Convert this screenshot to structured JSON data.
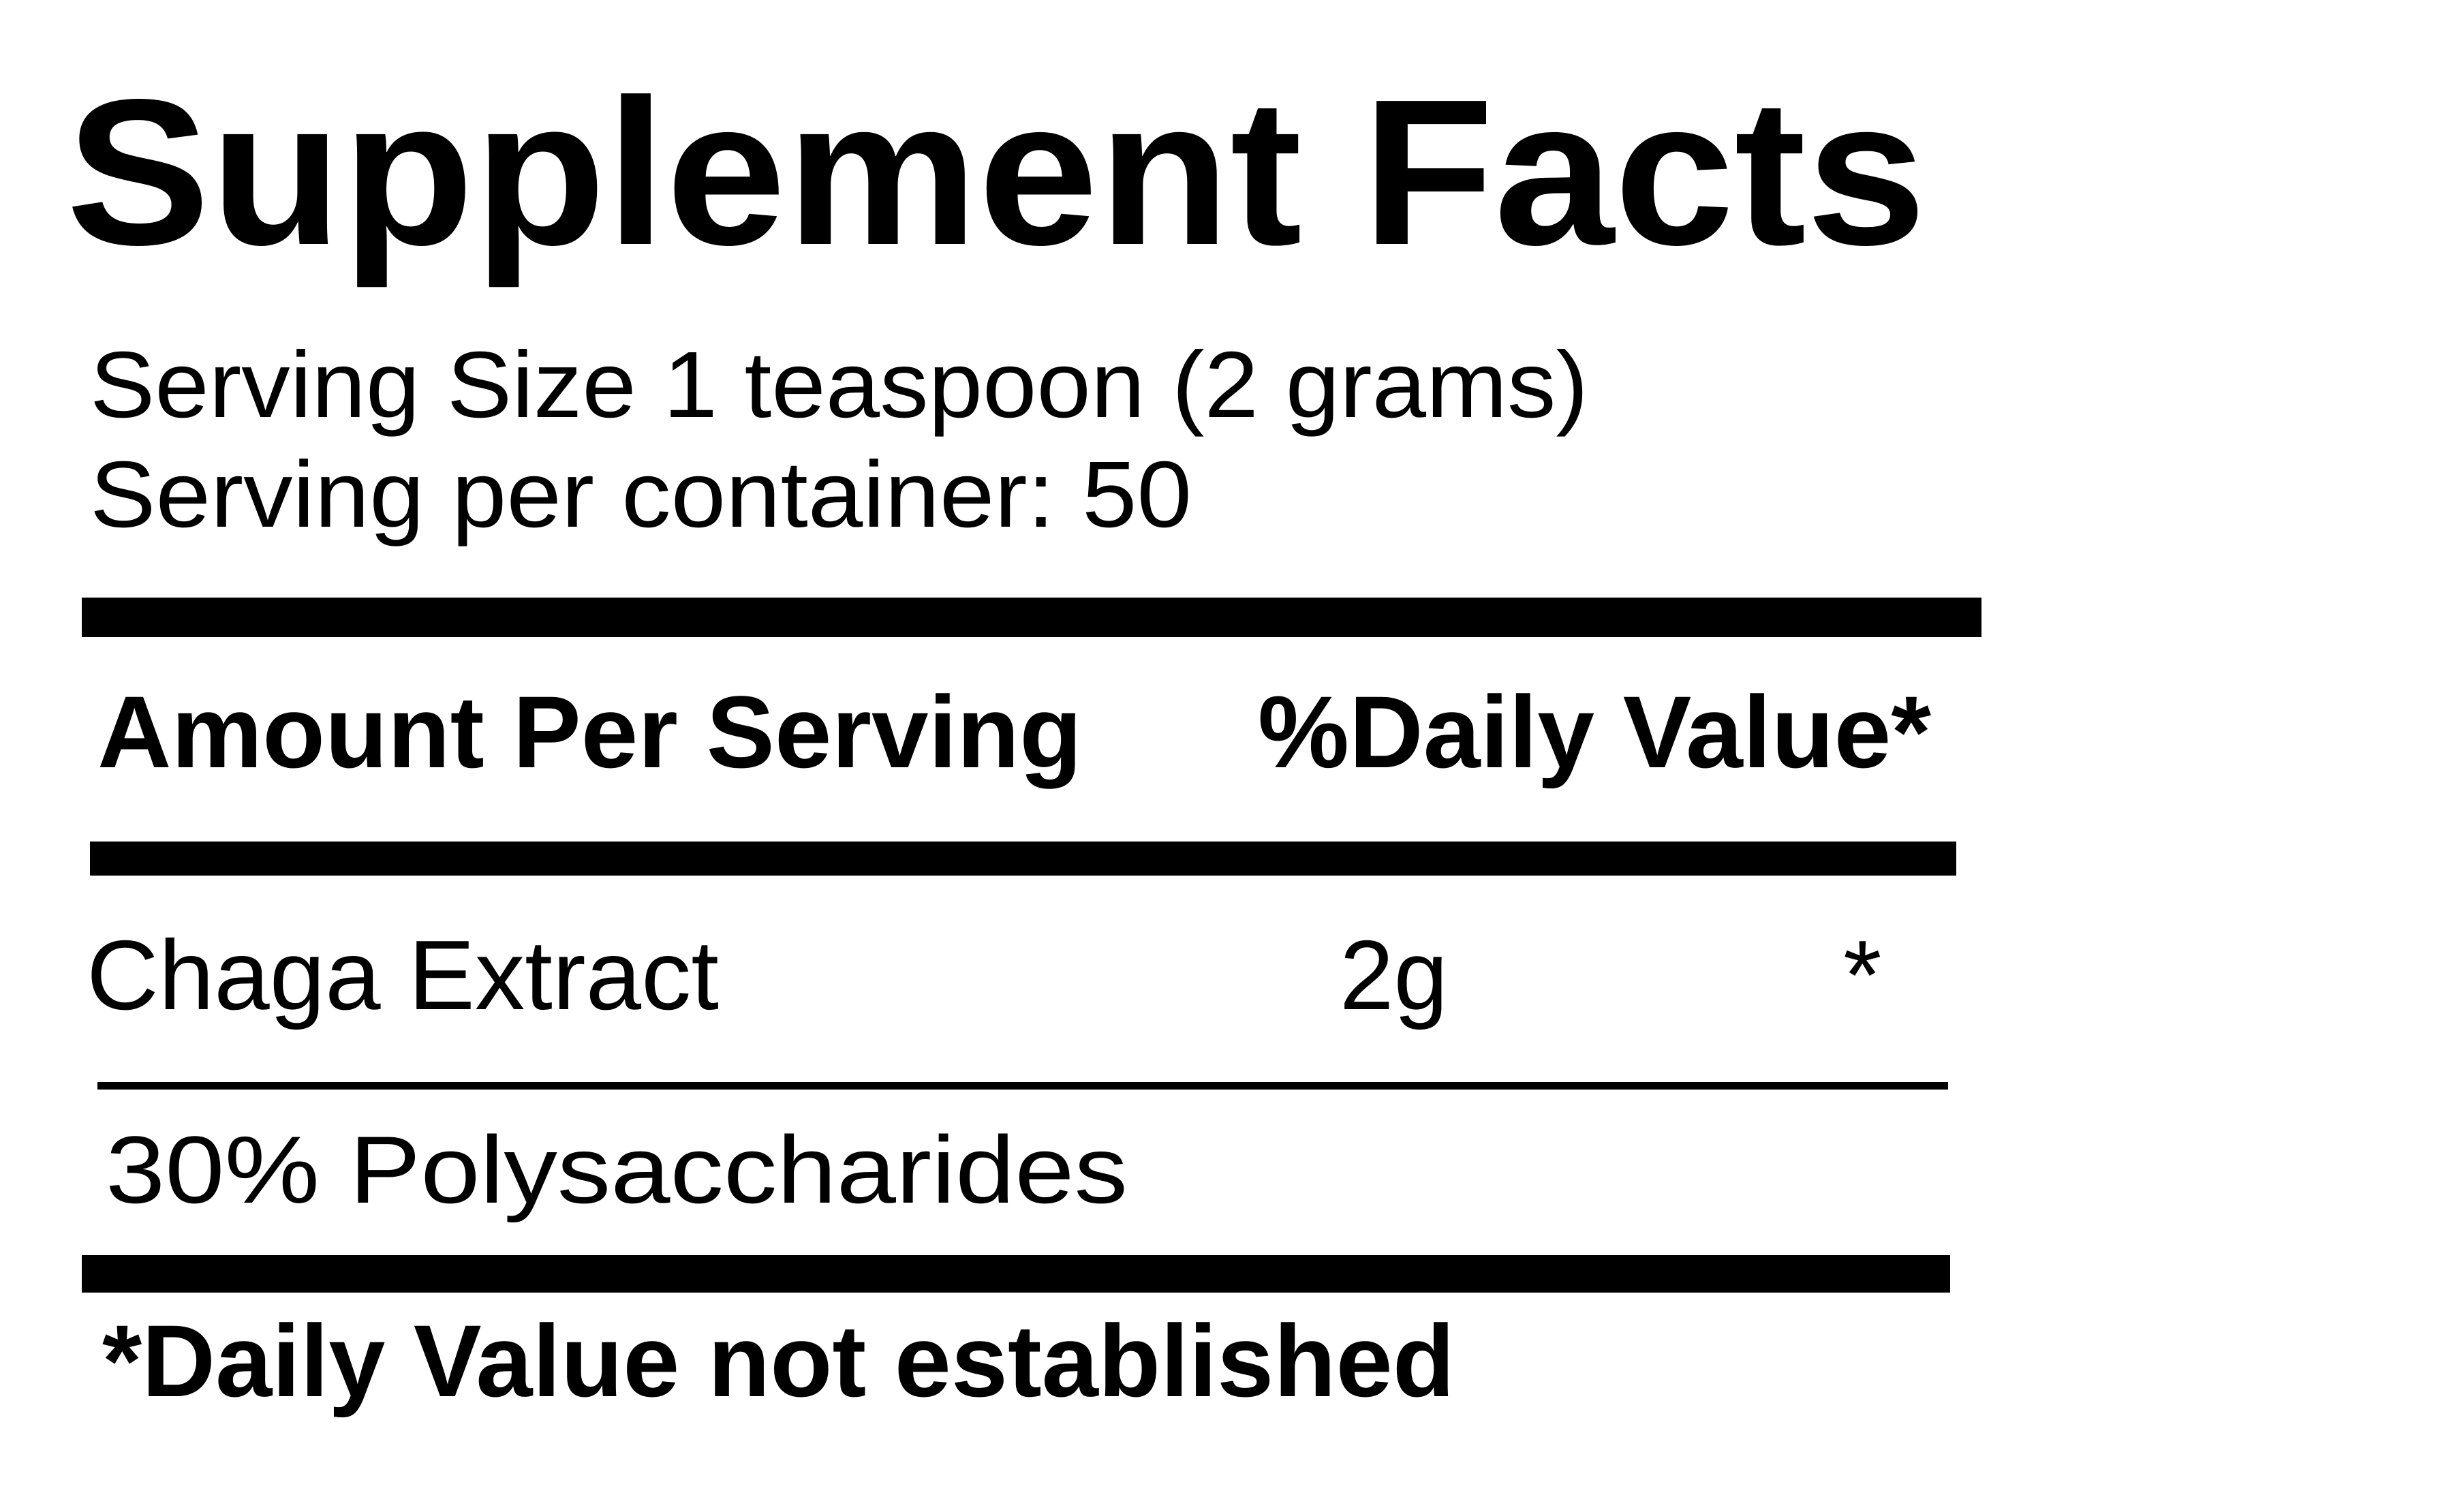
{
  "label": {
    "title": "Supplement Facts",
    "serving_size": "Serving Size 1 teaspoon (2 grams)",
    "servings_per_container": "Serving per container: 50",
    "header": {
      "amount": "Amount Per Serving",
      "daily_value": "%Daily Value*"
    },
    "rows": [
      {
        "name": "Chaga Extract",
        "amount": "2g",
        "daily_value": "*"
      },
      {
        "name": "30% Polysaccharides"
      }
    ],
    "footnote": "*Daily Value not established"
  },
  "colors": {
    "text": "#000000",
    "background": "#ffffff"
  }
}
